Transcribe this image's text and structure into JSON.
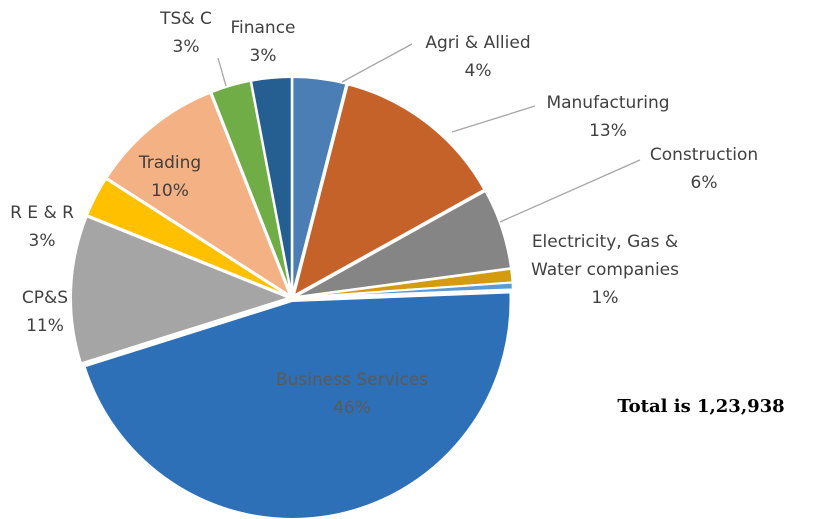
{
  "chart_data": {
    "type": "pie",
    "categories": [
      "Agri & Allied",
      "Manufacturing",
      "Construction",
      "Electricity, Gas & Water companies",
      null,
      "Business Services",
      "CP&S",
      "R E & R",
      "Trading",
      "TS& C",
      "Finance"
    ],
    "values": [
      4,
      13,
      6,
      1,
      0.5,
      46,
      11,
      3,
      10,
      3,
      3
    ],
    "value_labels": [
      "4%",
      "13%",
      "6%",
      "1%",
      null,
      "46%",
      "11%",
      "3%",
      "10%",
      "3%",
      "3%"
    ],
    "colors": [
      "#4a7eb4",
      "#c5622a",
      "#858585",
      "#d49b10",
      "#5b9bd5",
      "#2e70b7",
      "#a5a5a5",
      "#ffc000",
      "#f4b183",
      "#70ad47",
      "#255e91"
    ],
    "annotation": "Total is 1,23,938"
  }
}
